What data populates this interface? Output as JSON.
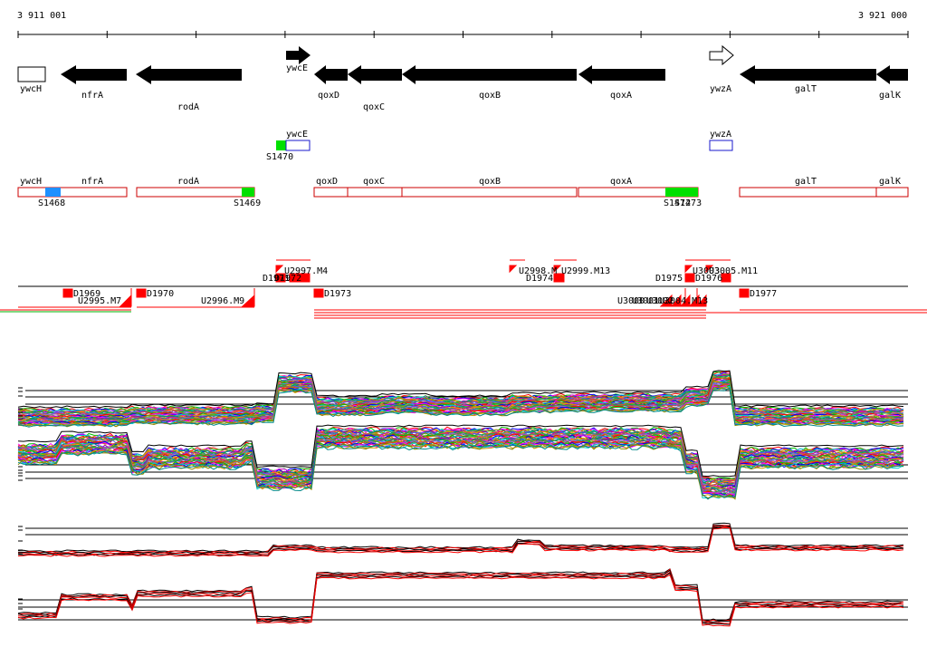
{
  "coordinates": {
    "start": "3 911 001",
    "end": "3 921 000"
  },
  "colors": {
    "gene": "#000000",
    "box_outline": "#cc0000",
    "box_fill": "#ffffff",
    "green": "#00e000",
    "blue": "#1e90ff",
    "ywcE_outline": "#1a1acc",
    "segment_red": "#ff0000",
    "line_black": "#000000"
  },
  "genes": [
    {
      "label": "ywcH",
      "icon": "empty-box"
    },
    {
      "label": "nfrA",
      "icon": "arrow-left"
    },
    {
      "label": "rodA",
      "icon": "arrow-left"
    },
    {
      "label": "ywcE",
      "icon": "arrow-right"
    },
    {
      "label": "qoxD",
      "icon": "arrow-left"
    },
    {
      "label": "qoxC",
      "icon": "arrow-left"
    },
    {
      "label": "qoxB",
      "icon": "arrow-left"
    },
    {
      "label": "qoxA",
      "icon": "arrow-left"
    },
    {
      "label": "ywzA",
      "icon": "outline-arrow-right"
    },
    {
      "label": "galT",
      "icon": "arrow-left"
    },
    {
      "label": "galK",
      "icon": "arrow-left"
    }
  ],
  "forward_track": {
    "boxes": [
      {
        "label": "ywcE"
      },
      {
        "label": "ywzA"
      }
    ],
    "sites": [
      {
        "label": "S1470"
      }
    ]
  },
  "reverse_track": {
    "boxes": [
      {
        "label": "ywcH"
      },
      {
        "label": "nfrA"
      },
      {
        "label": "rodA"
      },
      {
        "label": "qoxD"
      },
      {
        "label": "qoxC"
      },
      {
        "label": "qoxB"
      },
      {
        "label": "qoxA"
      },
      {
        "label": "galT"
      },
      {
        "label": "galK"
      }
    ],
    "sites": [
      {
        "label": "S1468"
      },
      {
        "label": "S1469"
      },
      {
        "label": "S1472"
      },
      {
        "label": "S1473"
      }
    ]
  },
  "segments_upper": [
    {
      "label": "U2997.M4"
    },
    {
      "label": "D1971"
    },
    {
      "label": "D1972"
    },
    {
      "label": "U2998.M"
    },
    {
      "label": "D1974"
    },
    {
      "label": "U2999.M13"
    },
    {
      "label": "D1975"
    },
    {
      "label": "U3003"
    },
    {
      "label": "D1976"
    },
    {
      "label": "U3005.M11"
    }
  ],
  "segments_lower": [
    {
      "label": "D1969"
    },
    {
      "label": "U2995.M7"
    },
    {
      "label": "D1970"
    },
    {
      "label": "U2996.M9"
    },
    {
      "label": "D1973"
    },
    {
      "label": "U3000"
    },
    {
      "label": "U3001"
    },
    {
      "label": "U3002"
    },
    {
      "label": "U3004.M13"
    },
    {
      "label": "D1977"
    }
  ]
}
